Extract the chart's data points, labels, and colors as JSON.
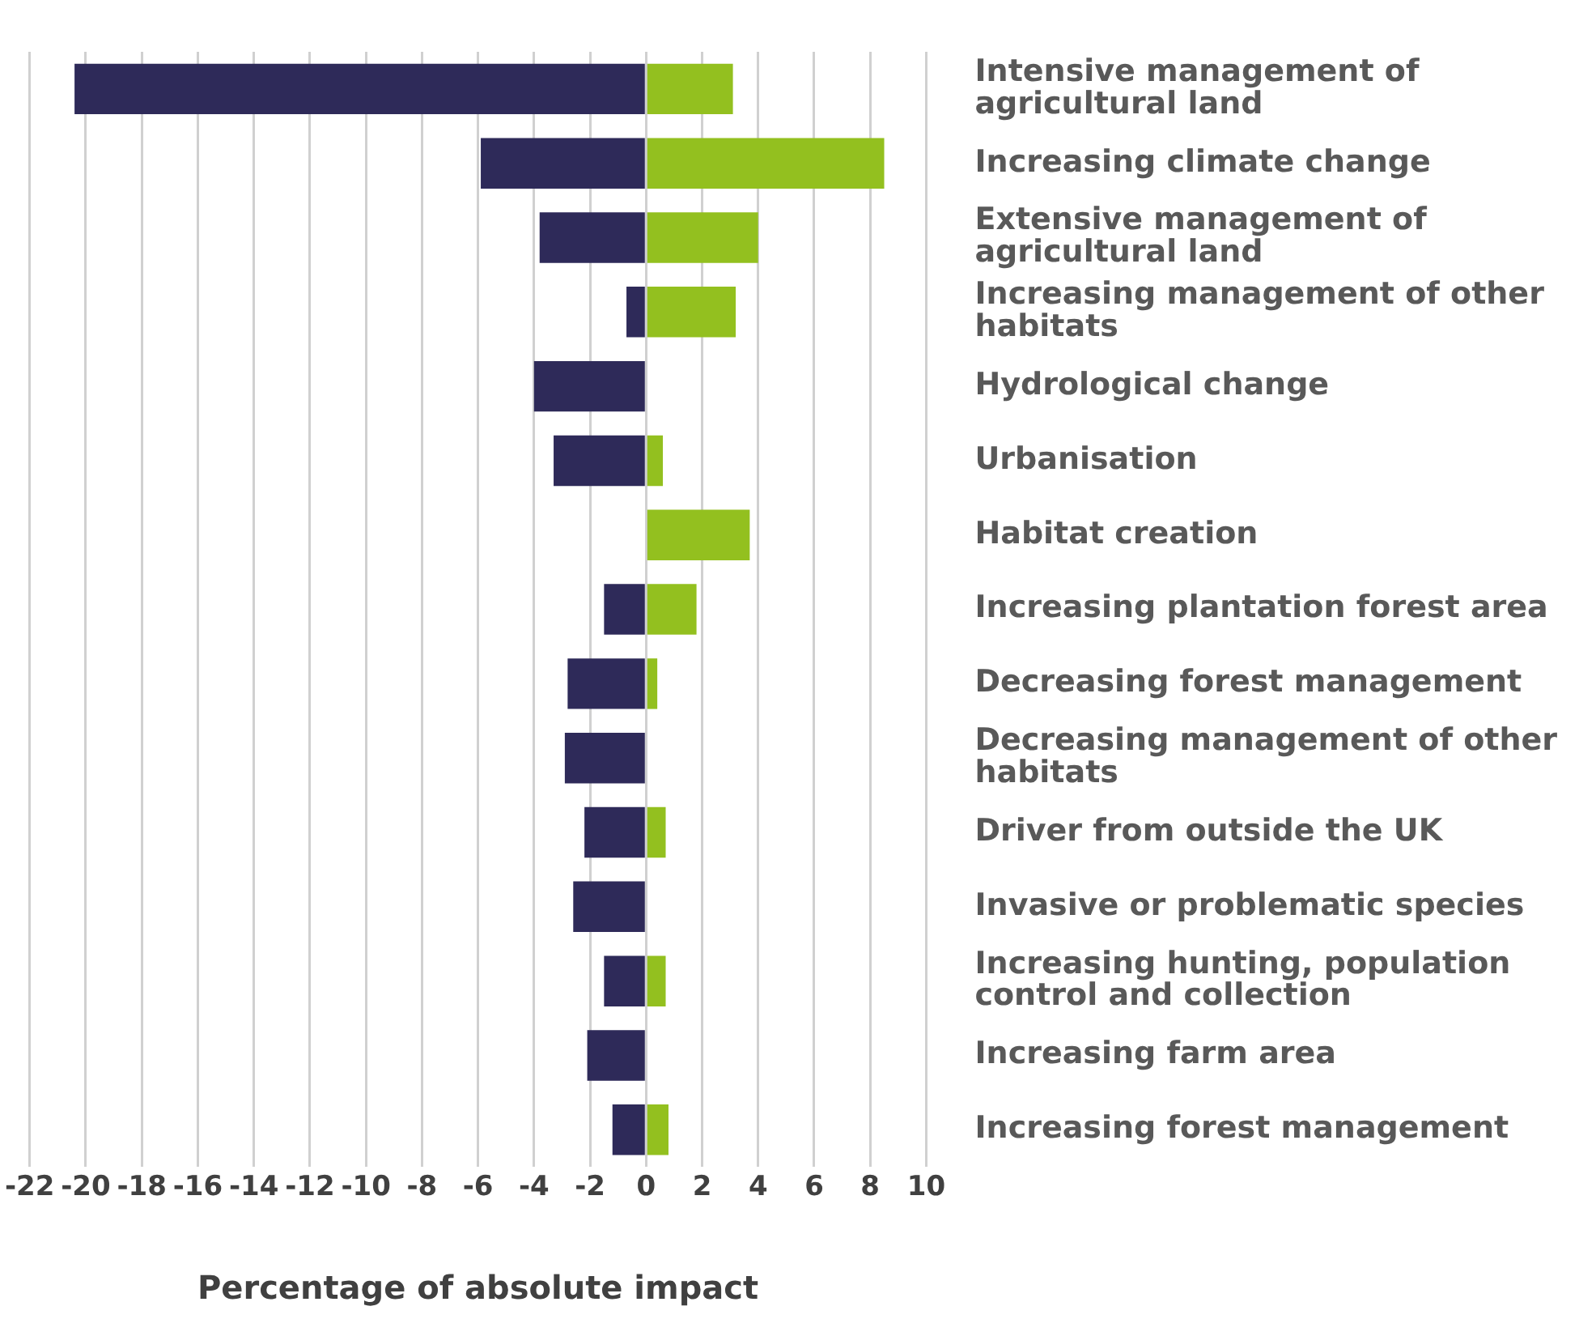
{
  "chart_data": {
    "type": "bar",
    "orientation": "horizontal",
    "stacked": true,
    "xlabel": "Percentage of absolute impact",
    "categories": [
      "Intensive management of agricultural land",
      "Increasing climate change",
      "Extensive management of agricultural land",
      "Increasing management of other habitats",
      "Hydrological change",
      "Urbanisation",
      "Habitat creation",
      "Increasing plantation forest area",
      "Decreasing forest management",
      "Decreasing management of other habitats",
      "Driver from outside the UK",
      "Invasive or problematic species",
      "Increasing hunting, population control and collection",
      "Increasing farm area",
      "Increasing forest management"
    ],
    "series": [
      {
        "color": "#2e2a59",
        "values": [
          -20.4,
          -5.9,
          -3.8,
          -0.7,
          -4.0,
          -3.3,
          null,
          -1.5,
          -2.8,
          -2.9,
          -2.2,
          -2.6,
          -1.5,
          -2.1,
          -1.2
        ]
      },
      {
        "color": "#93c01f",
        "values": [
          3.1,
          8.5,
          4.0,
          3.2,
          null,
          0.6,
          3.7,
          1.8,
          0.4,
          null,
          0.7,
          null,
          0.7,
          null,
          0.8
        ]
      }
    ],
    "xlim": [
      -22,
      10
    ],
    "xticks": [
      -22,
      -20,
      -18,
      -16,
      -14,
      -12,
      -10,
      -8,
      -6,
      -4,
      -2,
      0,
      2,
      4,
      6,
      8,
      10
    ],
    "grid": "x",
    "legend": false
  }
}
